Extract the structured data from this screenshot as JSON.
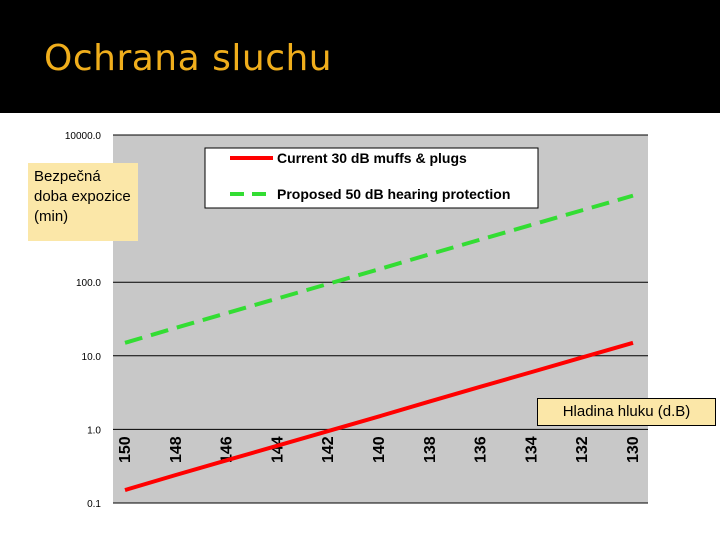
{
  "slide": {
    "title": "Ochrana sluchu"
  },
  "chart_data": {
    "type": "line",
    "xlabel": "Hladina hluku (d.B)",
    "ylabel": "Bezpečná doba expozice (min)",
    "y_scale": "log",
    "ylim": [
      0.1,
      10000
    ],
    "y_ticks": [
      "10000.0",
      "100.0",
      "10.0",
      "1.0",
      "0.1"
    ],
    "y_tick_values": [
      10000,
      100,
      10,
      1,
      0.1
    ],
    "x_categories": [
      "150",
      "148",
      "146",
      "144",
      "142",
      "140",
      "138",
      "136",
      "134",
      "132",
      "130"
    ],
    "legend_position": "top",
    "grid": true,
    "series": [
      {
        "name": "Current 30 dB muffs & plugs",
        "color": "#FF0000",
        "dash": "solid",
        "values": [
          0.15,
          0.24,
          0.38,
          0.6,
          0.95,
          1.5,
          2.4,
          3.8,
          6.0,
          9.5,
          15.0
        ]
      },
      {
        "name": "Proposed 50 dB hearing protection",
        "color": "#33DD33",
        "dash": "dashed",
        "values": [
          15.0,
          24.0,
          38.0,
          60.0,
          95.0,
          150.0,
          240.0,
          380.0,
          600.0,
          950.0,
          1500.0
        ]
      }
    ]
  }
}
